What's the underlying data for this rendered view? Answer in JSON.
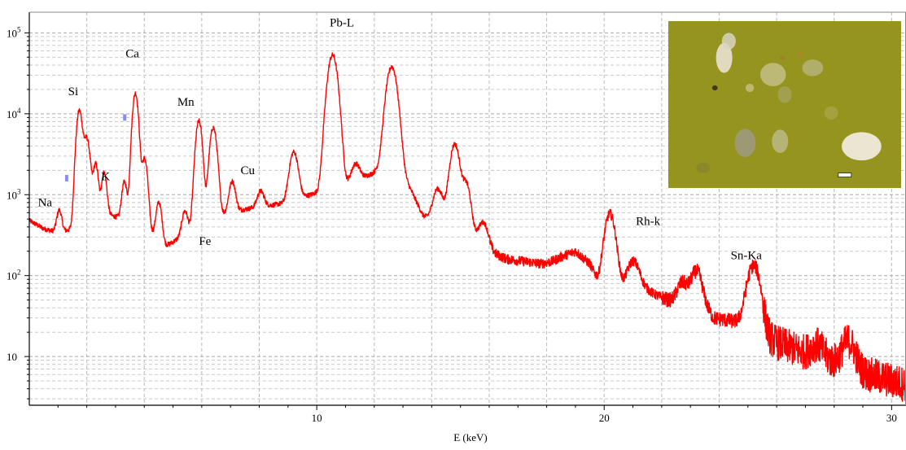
{
  "chart_data": {
    "type": "line",
    "title": "",
    "xlabel": "E (keV)",
    "ylabel": "",
    "x_scale": "linear",
    "y_scale": "log",
    "xlim": [
      0,
      30.5
    ],
    "ylim": [
      2.5,
      180000
    ],
    "grid": true,
    "x_ticks": [
      {
        "value": 10,
        "label": "10"
      },
      {
        "value": 20,
        "label": "20"
      },
      {
        "value": 30,
        "label": "30"
      }
    ],
    "y_ticks": [
      {
        "value": 10,
        "base": "10",
        "exp": ""
      },
      {
        "value": 100,
        "base": "10",
        "exp": "2"
      },
      {
        "value": 1000,
        "base": "10",
        "exp": "3"
      },
      {
        "value": 10000,
        "base": "10",
        "exp": "4"
      },
      {
        "value": 100000,
        "base": "10",
        "exp": "5"
      }
    ],
    "series_color": "#ff0000",
    "baseline": [
      [
        0,
        480
      ],
      [
        0.5,
        380
      ],
      [
        1.0,
        340
      ],
      [
        1.3,
        360
      ],
      [
        1.8,
        420
      ],
      [
        2.3,
        500
      ],
      [
        2.8,
        560
      ],
      [
        3.3,
        500
      ],
      [
        3.8,
        430
      ],
      [
        4.3,
        320
      ],
      [
        4.6,
        220
      ],
      [
        5.0,
        260
      ],
      [
        5.4,
        330
      ],
      [
        6.0,
        470
      ],
      [
        6.6,
        560
      ],
      [
        7.2,
        630
      ],
      [
        7.8,
        690
      ],
      [
        8.3,
        730
      ],
      [
        8.8,
        780
      ],
      [
        9.3,
        900
      ],
      [
        9.8,
        1000
      ],
      [
        10.3,
        1150
      ],
      [
        10.9,
        1300
      ],
      [
        11.4,
        1550
      ],
      [
        11.9,
        1800
      ],
      [
        12.4,
        2400
      ],
      [
        12.9,
        2100
      ],
      [
        13.3,
        1100
      ],
      [
        13.7,
        550
      ],
      [
        14.0,
        480
      ],
      [
        14.5,
        620
      ],
      [
        15.0,
        620
      ],
      [
        15.4,
        330
      ],
      [
        16.0,
        200
      ],
      [
        16.6,
        160
      ],
      [
        17.2,
        150
      ],
      [
        17.8,
        140
      ],
      [
        18.2,
        150
      ],
      [
        18.5,
        170
      ],
      [
        19.0,
        200
      ],
      [
        19.5,
        140
      ],
      [
        19.8,
        85
      ],
      [
        20.6,
        75
      ],
      [
        21.2,
        85
      ],
      [
        21.7,
        60
      ],
      [
        22.2,
        50
      ],
      [
        22.5,
        45
      ],
      [
        22.8,
        52
      ],
      [
        23.3,
        60
      ],
      [
        23.8,
        30
      ],
      [
        24.3,
        28
      ],
      [
        24.8,
        26
      ],
      [
        25.3,
        28
      ],
      [
        25.6,
        17
      ],
      [
        26.2,
        14
      ],
      [
        27.0,
        11
      ],
      [
        27.8,
        9
      ],
      [
        28.5,
        7.5
      ],
      [
        29.2,
        6
      ],
      [
        30.0,
        5
      ],
      [
        30.5,
        4.5
      ]
    ],
    "peaks": [
      {
        "x": 1.04,
        "height": 300,
        "width": 0.08
      },
      {
        "x": 1.74,
        "height": 10500,
        "width": 0.09
      },
      {
        "x": 2.0,
        "height": 4500,
        "width": 0.1
      },
      {
        "x": 2.31,
        "height": 1900,
        "width": 0.08
      },
      {
        "x": 2.6,
        "height": 1350,
        "width": 0.08
      },
      {
        "x": 3.31,
        "height": 950,
        "width": 0.08
      },
      {
        "x": 3.69,
        "height": 17500,
        "width": 0.09
      },
      {
        "x": 4.01,
        "height": 2400,
        "width": 0.09
      },
      {
        "x": 4.51,
        "height": 560,
        "width": 0.09
      },
      {
        "x": 5.41,
        "height": 300,
        "width": 0.09
      },
      {
        "x": 5.9,
        "height": 7700,
        "width": 0.1
      },
      {
        "x": 6.4,
        "height": 6200,
        "width": 0.11
      },
      {
        "x": 7.06,
        "height": 850,
        "width": 0.1
      },
      {
        "x": 8.05,
        "height": 400,
        "width": 0.11
      },
      {
        "x": 9.2,
        "height": 2500,
        "width": 0.13
      },
      {
        "x": 10.55,
        "height": 52000,
        "width": 0.15
      },
      {
        "x": 11.35,
        "height": 900,
        "width": 0.13
      },
      {
        "x": 12.61,
        "height": 36000,
        "width": 0.16
      },
      {
        "x": 14.2,
        "height": 650,
        "width": 0.15
      },
      {
        "x": 14.8,
        "height": 3600,
        "width": 0.14
      },
      {
        "x": 15.2,
        "height": 950,
        "width": 0.13
      },
      {
        "x": 15.8,
        "height": 220,
        "width": 0.15
      },
      {
        "x": 20.2,
        "height": 500,
        "width": 0.16
      },
      {
        "x": 21.0,
        "height": 70,
        "width": 0.17
      },
      {
        "x": 22.7,
        "height": 32,
        "width": 0.17
      },
      {
        "x": 23.2,
        "height": 55,
        "width": 0.16
      },
      {
        "x": 25.2,
        "height": 105,
        "width": 0.2
      },
      {
        "x": 27.4,
        "height": 4,
        "width": 0.2
      },
      {
        "x": 28.5,
        "height": 8,
        "width": 0.2
      }
    ],
    "markers": [
      {
        "x": 1.3,
        "y": 1600,
        "color": "#8a8ef0"
      },
      {
        "x": 3.32,
        "y": 9000,
        "color": "#8a8ef0"
      }
    ],
    "annotations": [
      {
        "text": "Na",
        "x": 0.3,
        "y": 720
      },
      {
        "text": "Si",
        "x": 1.35,
        "y": 17000
      },
      {
        "text": "K",
        "x": 2.5,
        "y": 1500
      },
      {
        "text": "Ca",
        "x": 3.35,
        "y": 50000
      },
      {
        "text": "Mn",
        "x": 5.15,
        "y": 12500
      },
      {
        "text": "Fe",
        "x": 5.9,
        "y": 240
      },
      {
        "text": "Cu",
        "x": 7.35,
        "y": 1800
      },
      {
        "text": "Pb-L",
        "x": 10.45,
        "y": 120000
      },
      {
        "text": "Rh-k",
        "x": 21.1,
        "y": 420
      },
      {
        "text": "Sn-Ka",
        "x": 24.4,
        "y": 160
      }
    ]
  },
  "inset_photo": {
    "background": "#94941f",
    "highlight": "#b0ad36"
  }
}
